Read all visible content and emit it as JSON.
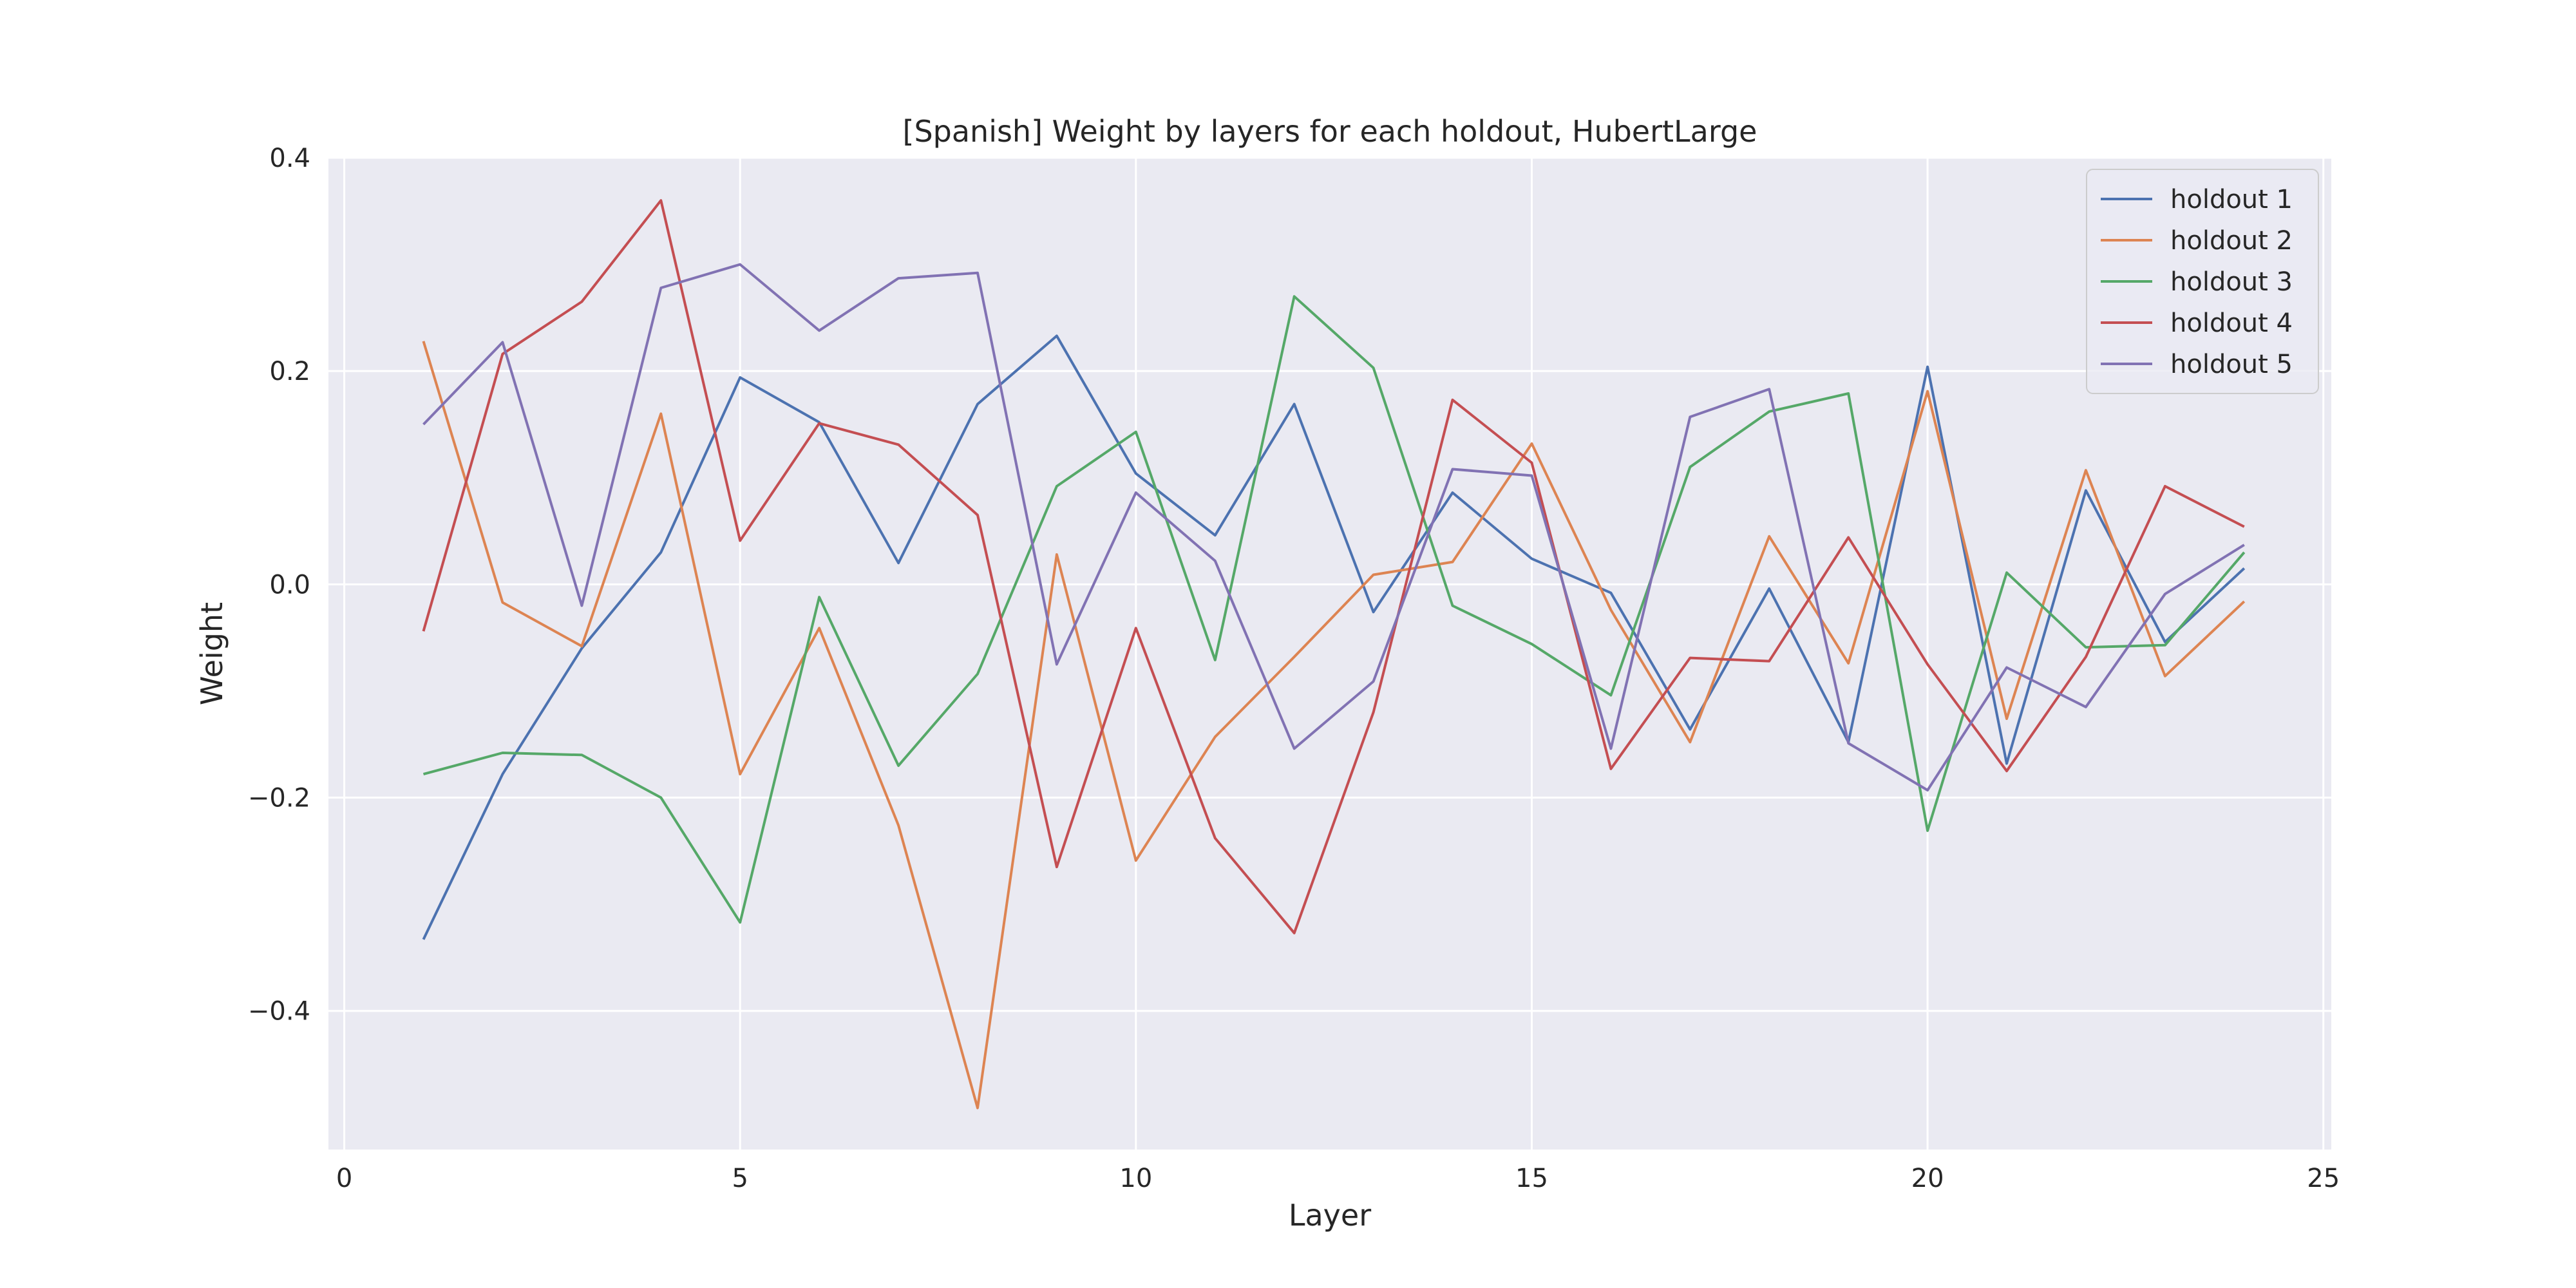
{
  "chart_data": {
    "type": "line",
    "title": "[Spanish] Weight by layers for each holdout, HubertLarge",
    "xlabel": "Layer",
    "ylabel": "Weight",
    "xlim": [
      -0.2,
      25.1
    ],
    "ylim": [
      -0.53,
      0.4
    ],
    "xticks": [
      0,
      5,
      10,
      15,
      20,
      25
    ],
    "yticks": [
      0.4,
      0.2,
      0.0,
      -0.2,
      -0.4
    ],
    "ytick_labels": [
      "0.4",
      "0.2",
      "0.0",
      "−0.2",
      "−0.4"
    ],
    "grid": true,
    "legend_position": "top-right",
    "x": [
      1,
      2,
      3,
      4,
      5,
      6,
      7,
      8,
      9,
      10,
      11,
      12,
      13,
      14,
      15,
      16,
      17,
      18,
      19,
      20,
      21,
      22,
      23,
      24
    ],
    "series": [
      {
        "name": "holdout 1",
        "color": "#4c72b0",
        "values": [
          -0.333,
          -0.178,
          -0.06,
          0.03,
          0.194,
          0.152,
          0.02,
          0.169,
          0.233,
          0.104,
          0.046,
          0.169,
          -0.026,
          0.086,
          0.024,
          -0.008,
          -0.136,
          -0.004,
          -0.148,
          0.204,
          -0.168,
          0.088,
          -0.054,
          0.015
        ]
      },
      {
        "name": "holdout 2",
        "color": "#dd8452",
        "values": [
          0.228,
          -0.017,
          -0.058,
          0.16,
          -0.178,
          -0.041,
          -0.226,
          -0.491,
          0.028,
          -0.259,
          -0.143,
          -0.068,
          0.009,
          0.021,
          0.132,
          -0.024,
          -0.148,
          0.045,
          -0.074,
          0.181,
          -0.126,
          0.107,
          -0.086,
          -0.016
        ]
      },
      {
        "name": "holdout 3",
        "color": "#55a868",
        "values": [
          -0.178,
          -0.158,
          -0.16,
          -0.2,
          -0.317,
          -0.012,
          -0.17,
          -0.084,
          0.092,
          0.143,
          -0.071,
          0.27,
          0.203,
          -0.02,
          -0.056,
          -0.104,
          0.11,
          0.162,
          0.179,
          -0.231,
          0.011,
          -0.059,
          -0.057,
          0.03
        ]
      },
      {
        "name": "holdout 4",
        "color": "#c44e52",
        "values": [
          -0.044,
          0.216,
          0.265,
          0.36,
          0.041,
          0.151,
          0.131,
          0.065,
          -0.265,
          -0.041,
          -0.238,
          -0.327,
          -0.12,
          0.173,
          0.114,
          -0.173,
          -0.069,
          -0.072,
          0.044,
          -0.075,
          -0.175,
          -0.068,
          0.092,
          0.054
        ]
      },
      {
        "name": "holdout 5",
        "color": "#8172b3",
        "values": [
          0.15,
          0.227,
          -0.02,
          0.278,
          0.3,
          0.238,
          0.287,
          0.292,
          -0.075,
          0.086,
          0.022,
          -0.154,
          -0.091,
          0.108,
          0.102,
          -0.154,
          0.157,
          0.183,
          -0.149,
          -0.193,
          -0.078,
          -0.115,
          -0.009,
          0.037
        ]
      }
    ]
  }
}
